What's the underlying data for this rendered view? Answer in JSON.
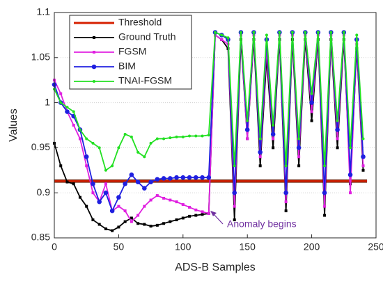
{
  "chart_data": {
    "type": "line",
    "xlabel": "ADS-B Samples",
    "ylabel": "Values",
    "annotation": "Anomaly begins",
    "xlim": [
      0,
      250
    ],
    "xticks": [
      0,
      50,
      100,
      150,
      200,
      250
    ],
    "ylim": [
      0.85,
      1.1
    ],
    "yticks": [
      0.85,
      0.9,
      0.95,
      1,
      1.05,
      1.1
    ],
    "grid": true,
    "legend": "upper left",
    "series": [
      {
        "name": "Threshold",
        "color": "#d62000",
        "marker": "none",
        "x": [
          0,
          243
        ],
        "values": [
          0.913,
          0.913
        ]
      },
      {
        "name": "Ground Truth",
        "color": "#000000",
        "marker": "square",
        "x": [
          0,
          5,
          10,
          15,
          20,
          25,
          30,
          35,
          40,
          45,
          50,
          55,
          60,
          65,
          70,
          75,
          80,
          85,
          90,
          95,
          100,
          105,
          110,
          115,
          120,
          125,
          130,
          135,
          140,
          145,
          150,
          155,
          160,
          165,
          170,
          175,
          180,
          185,
          190,
          195,
          200,
          205,
          210,
          215,
          220,
          225,
          230,
          235,
          240
        ],
        "values": [
          0.955,
          0.93,
          0.912,
          0.91,
          0.895,
          0.885,
          0.87,
          0.865,
          0.86,
          0.858,
          0.862,
          0.868,
          0.872,
          0.866,
          0.865,
          0.863,
          0.864,
          0.866,
          0.868,
          0.87,
          0.872,
          0.874,
          0.875,
          0.876,
          0.877,
          1.075,
          1.07,
          1.06,
          0.87,
          1.07,
          0.96,
          1.07,
          0.93,
          1.05,
          0.95,
          1.07,
          0.88,
          1.07,
          0.93,
          1.07,
          0.98,
          1.07,
          0.875,
          1.07,
          0.95,
          1.07,
          0.91,
          1.06,
          0.925
        ]
      },
      {
        "name": "FGSM",
        "color": "#e020e0",
        "marker": "square",
        "x": [
          0,
          5,
          10,
          15,
          20,
          25,
          30,
          35,
          40,
          45,
          50,
          55,
          60,
          65,
          70,
          75,
          80,
          85,
          90,
          95,
          100,
          105,
          110,
          115,
          120,
          125,
          130,
          135,
          140,
          145,
          150,
          155,
          160,
          165,
          170,
          175,
          180,
          185,
          190,
          195,
          200,
          205,
          210,
          215,
          220,
          225,
          230,
          235,
          240
        ],
        "values": [
          1.025,
          1.01,
          0.99,
          0.975,
          0.96,
          0.93,
          0.9,
          0.89,
          0.91,
          0.88,
          0.885,
          0.88,
          0.868,
          0.875,
          0.885,
          0.892,
          0.897,
          0.894,
          0.892,
          0.89,
          0.887,
          0.884,
          0.881,
          0.879,
          0.877,
          1.075,
          1.07,
          1.065,
          0.885,
          1.075,
          0.96,
          1.075,
          0.94,
          1.06,
          0.96,
          1.075,
          0.89,
          1.075,
          0.94,
          1.075,
          0.99,
          1.075,
          0.885,
          1.075,
          0.96,
          1.075,
          0.9,
          1.065,
          0.93
        ]
      },
      {
        "name": "BIM",
        "color": "#1f1fe0",
        "marker": "circle",
        "x": [
          0,
          5,
          10,
          15,
          20,
          25,
          30,
          35,
          40,
          45,
          50,
          55,
          60,
          65,
          70,
          75,
          80,
          85,
          90,
          95,
          100,
          105,
          110,
          115,
          120,
          125,
          130,
          135,
          140,
          145,
          150,
          155,
          160,
          165,
          170,
          175,
          180,
          185,
          190,
          195,
          200,
          205,
          210,
          215,
          220,
          225,
          230,
          235,
          240
        ],
        "values": [
          1.02,
          1.0,
          0.99,
          0.985,
          0.97,
          0.94,
          0.91,
          0.89,
          0.9,
          0.88,
          0.895,
          0.91,
          0.92,
          0.912,
          0.905,
          0.912,
          0.915,
          0.916,
          0.916,
          0.917,
          0.917,
          0.917,
          0.917,
          0.917,
          0.917,
          1.078,
          1.075,
          1.07,
          0.9,
          1.078,
          0.97,
          1.078,
          0.945,
          1.07,
          0.965,
          1.078,
          0.9,
          1.078,
          0.95,
          1.078,
          1.0,
          1.078,
          0.9,
          1.078,
          0.97,
          1.078,
          0.92,
          1.07,
          0.94
        ]
      },
      {
        "name": "TNAI-FGSM",
        "color": "#22e022",
        "marker": "dot",
        "x": [
          0,
          5,
          10,
          15,
          20,
          25,
          30,
          35,
          40,
          45,
          50,
          55,
          60,
          65,
          70,
          75,
          80,
          85,
          90,
          95,
          100,
          105,
          110,
          115,
          120,
          125,
          130,
          135,
          140,
          145,
          150,
          155,
          160,
          165,
          170,
          175,
          180,
          185,
          190,
          195,
          200,
          205,
          210,
          215,
          220,
          225,
          230,
          235,
          240
        ],
        "values": [
          1.015,
          1.0,
          0.995,
          0.99,
          0.97,
          0.96,
          0.955,
          0.95,
          0.925,
          0.93,
          0.95,
          0.965,
          0.962,
          0.945,
          0.94,
          0.955,
          0.96,
          0.96,
          0.961,
          0.962,
          0.962,
          0.963,
          0.963,
          0.963,
          0.964,
          1.078,
          1.075,
          1.072,
          0.93,
          1.078,
          0.98,
          1.078,
          0.96,
          1.075,
          0.975,
          1.078,
          0.93,
          1.078,
          0.96,
          1.078,
          1.01,
          1.078,
          0.93,
          1.078,
          0.98,
          1.078,
          0.95,
          1.075,
          0.96
        ]
      }
    ]
  }
}
